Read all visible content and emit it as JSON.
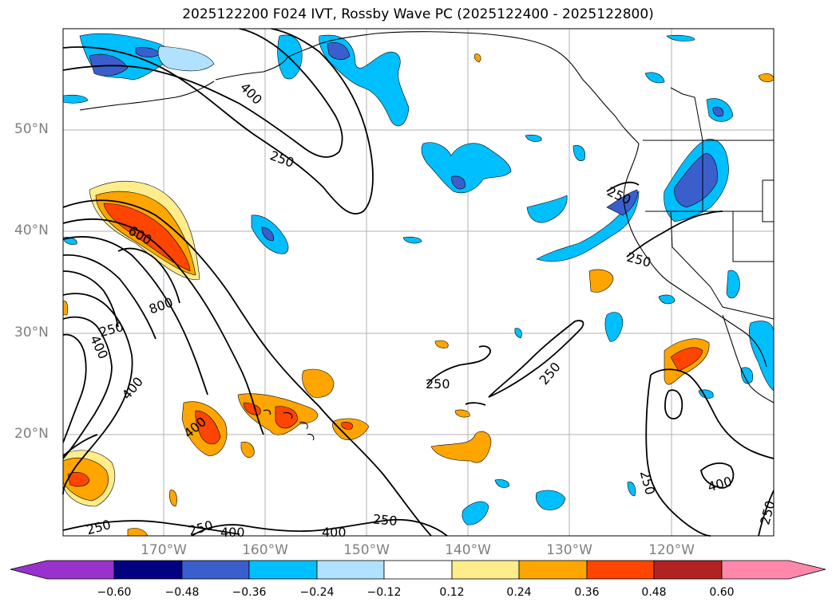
{
  "title": "2025122200 F024 IVT, Rossby Wave PC (2025122400 - 2025122800)",
  "lat_labels": [
    "50°N",
    "40°N",
    "30°N",
    "20°N"
  ],
  "lon_labels": [
    "170°W",
    "160°W",
    "150°W",
    "140°W",
    "130°W",
    "120°W"
  ],
  "contour_labels": [
    "400",
    "250",
    "250",
    "250",
    "600",
    "800",
    "250",
    "400",
    "400",
    "400",
    "250",
    "250",
    "250",
    "250",
    "400",
    "400",
    "250",
    "250",
    "400",
    "250"
  ],
  "colorbar": {
    "ticks": [
      "−0.60",
      "−0.48",
      "−0.36",
      "−0.24",
      "−0.12",
      "0.12",
      "0.24",
      "0.36",
      "0.48",
      "0.60"
    ],
    "colors": [
      "#9932cc",
      "#000080",
      "#3a5fcd",
      "#00bfff",
      "#b0e2ff",
      "#ffffff",
      "#ffec8b",
      "#ffa500",
      "#ff4500",
      "#b22222",
      "#ff88aa"
    ]
  }
}
